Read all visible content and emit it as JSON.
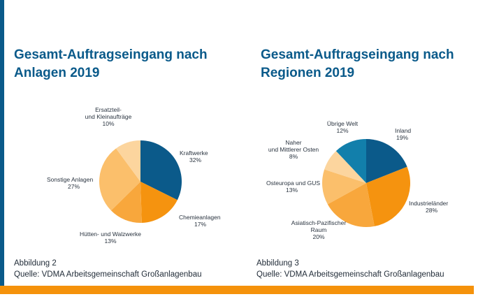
{
  "colors": {
    "accent_blue": "#0a5a8a",
    "accent_orange": "#f5920b",
    "title_blue": "#0a5a8a"
  },
  "left": {
    "title": "Gesamt-Auftragseingang nach\nAnlagen 2019",
    "caption_line1": "Abbildung 2",
    "caption_line2": "Quelle: VDMA Arbeitsgemeinschaft Großanlagenbau"
  },
  "right": {
    "title": "Gesamt-Auftragseingang nach\nRegionen 2019",
    "caption_line1": "Abbildung 3",
    "caption_line2": "Quelle: VDMA Arbeitsgemeinschaft Großanlagenbau"
  },
  "chart_data": [
    {
      "type": "pie",
      "title": "Gesamt-Auftragseingang nach Anlagen 2019",
      "unit": "%",
      "slices": [
        {
          "label": "Kraftwerke",
          "value": 32,
          "value_label": "32%",
          "color": "#0b5a8a"
        },
        {
          "label": "Chemieanlagen",
          "value": 17,
          "value_label": "17%",
          "color": "#f5930f"
        },
        {
          "label": "Hütten- und Walzwerke",
          "value": 13,
          "value_label": "13%",
          "color": "#f8a73c"
        },
        {
          "label": "Sonstige Anlagen",
          "value": 27,
          "value_label": "27%",
          "color": "#fbbf6b"
        },
        {
          "label": "Ersatzteil- und Kleinaufträge",
          "value": 10,
          "value_label": "10%",
          "color": "#fcd59e"
        }
      ]
    },
    {
      "type": "pie",
      "title": "Gesamt-Auftragseingang nach Regionen 2019",
      "unit": "%",
      "slices": [
        {
          "label": "Inland",
          "value": 19,
          "value_label": "19%",
          "color": "#0b5a8a"
        },
        {
          "label": "Industrieländer",
          "value": 28,
          "value_label": "28%",
          "color": "#f5930f"
        },
        {
          "label": "Asiatisch-Pazifischer Raum",
          "value": 20,
          "value_label": "20%",
          "color": "#f8a73c"
        },
        {
          "label": "Osteuropa und GUS",
          "value": 13,
          "value_label": "13%",
          "color": "#fbbf6b"
        },
        {
          "label": "Naher und Mittlerer Osten",
          "value": 8,
          "value_label": "8%",
          "color": "#fcd59e"
        },
        {
          "label": "Übrige Welt",
          "value": 12,
          "value_label": "12%",
          "color": "#127fab"
        }
      ]
    }
  ]
}
